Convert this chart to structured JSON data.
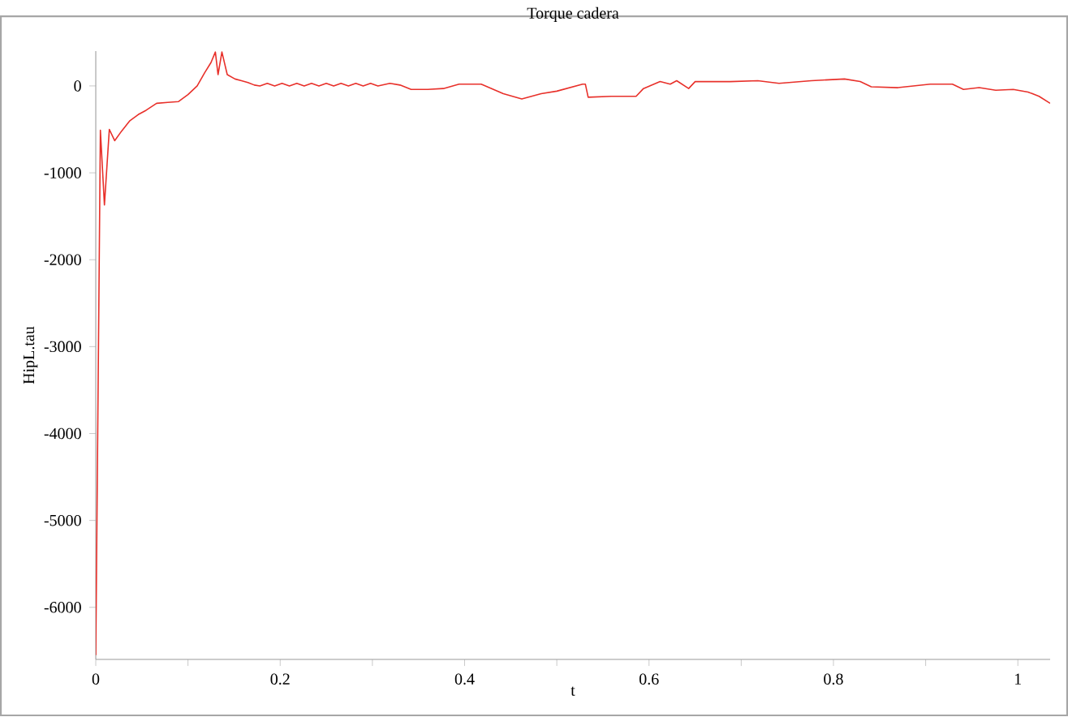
{
  "chart_data": {
    "type": "line",
    "title": "Torque cadera",
    "xlabel": "t",
    "ylabel": "HipL.tau",
    "xlim": [
      0,
      1.035
    ],
    "ylim": [
      -6600,
      400
    ],
    "xticks": [
      0,
      {
        "value": 0.1,
        "label": null
      },
      0.2,
      {
        "value": 0.3,
        "label": null
      },
      0.4,
      {
        "value": 0.5,
        "label": null
      },
      0.6,
      {
        "value": 0.7,
        "label": null
      },
      0.8,
      {
        "value": 0.9,
        "label": null
      },
      1
    ],
    "yticks": [
      -6000,
      -5000,
      -4000,
      -3000,
      -2000,
      -1000,
      0
    ],
    "grid": false,
    "marker": "none",
    "line_style": "solid",
    "series": [
      {
        "color": "#e8302a",
        "x": [
          0,
          0.005,
          0.0094,
          0.0147,
          0.0205,
          0.028,
          0.037,
          0.046,
          0.0546,
          0.066,
          0.078,
          0.0898,
          0.1,
          0.11,
          0.118,
          0.125,
          0.1297,
          0.1326,
          0.1368,
          0.1426,
          0.151,
          0.158,
          0.165,
          0.172,
          0.178,
          0.186,
          0.194,
          0.202,
          0.21,
          0.218,
          0.226,
          0.234,
          0.242,
          0.25,
          0.258,
          0.266,
          0.274,
          0.282,
          0.29,
          0.298,
          0.306,
          0.319,
          0.33,
          0.342,
          0.36,
          0.377,
          0.394,
          0.418,
          0.442,
          0.462,
          0.483,
          0.5,
          0.528,
          0.531,
          0.534,
          0.559,
          0.586,
          0.594,
          0.612,
          0.623,
          0.63,
          0.643,
          0.65,
          0.688,
          0.718,
          0.741,
          0.776,
          0.812,
          0.829,
          0.841,
          0.87,
          0.905,
          0.929,
          0.941,
          0.958,
          0.976,
          0.995,
          1.011,
          1.023,
          1.035
        ],
        "values": [
          -6550,
          -510,
          -1370,
          -500,
          -630,
          -520,
          -400,
          -330,
          -280,
          -200,
          -190,
          -180,
          -100,
          0,
          150,
          270,
          390,
          130,
          390,
          130,
          80,
          60,
          40,
          10,
          0,
          30,
          0,
          30,
          0,
          30,
          0,
          30,
          0,
          30,
          0,
          30,
          0,
          30,
          0,
          30,
          0,
          30,
          10,
          -40,
          -40,
          -30,
          20,
          20,
          -90,
          -150,
          -90,
          -60,
          20,
          20,
          -130,
          -120,
          -120,
          -30,
          50,
          20,
          60,
          -30,
          50,
          50,
          60,
          30,
          60,
          80,
          50,
          -10,
          -20,
          20,
          20,
          -40,
          -20,
          -50,
          -40,
          -70,
          -120,
          -200
        ]
      }
    ]
  }
}
